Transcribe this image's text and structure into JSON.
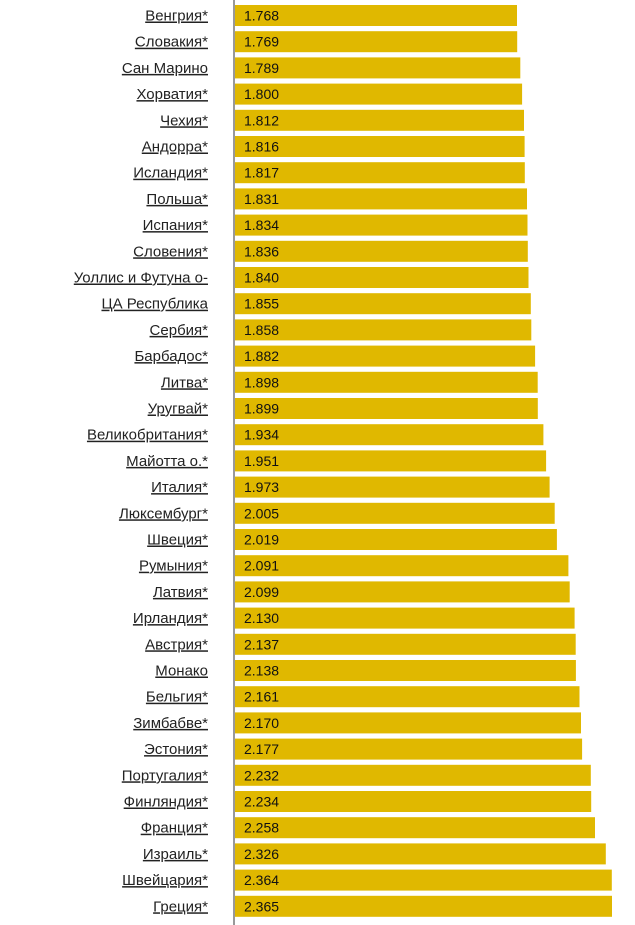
{
  "chart_data": {
    "type": "bar",
    "orientation": "horizontal",
    "title": "",
    "xlabel": "",
    "ylabel": "",
    "bar_color": "#E0B800",
    "axis_color": "#333333",
    "categories": [
      "Венгрия*",
      "Словакия*",
      "Сан Марино",
      "Хорватия*",
      "Чехия*",
      "Андорра*",
      "Исландия*",
      "Польша*",
      "Испания*",
      "Словения*",
      "Уоллис и Футуна о-",
      "ЦА Республика",
      "Сербия*",
      "Барбадос*",
      "Литва*",
      "Уругвай*",
      "Великобритания*",
      "Майотта о.*",
      "Италия*",
      "Люксембург*",
      "Швеция*",
      "Румыния*",
      "Латвия*",
      "Ирландия*",
      "Австрия*",
      "Монако",
      "Бельгия*",
      "Зимбабве*",
      "Эстония*",
      "Португалия*",
      "Финляндия*",
      "Франция*",
      "Израиль*",
      "Швейцария*",
      "Греция*"
    ],
    "values": [
      1.768,
      1.769,
      1.789,
      1.8,
      1.812,
      1.816,
      1.817,
      1.831,
      1.834,
      1.836,
      1.84,
      1.855,
      1.858,
      1.882,
      1.898,
      1.899,
      1.934,
      1.951,
      1.973,
      2.005,
      2.019,
      2.091,
      2.099,
      2.13,
      2.137,
      2.138,
      2.161,
      2.17,
      2.177,
      2.232,
      2.234,
      2.258,
      2.326,
      2.364,
      2.365
    ],
    "value_labels": [
      "1.768",
      "1.769",
      "1.789",
      "1.800",
      "1.812",
      "1.816",
      "1.817",
      "1.831",
      "1.834",
      "1.836",
      "1.840",
      "1.855",
      "1.858",
      "1.882",
      "1.898",
      "1.899",
      "1.934",
      "1.951",
      "1.973",
      "2.005",
      "2.019",
      "2.091",
      "2.099",
      "2.130",
      "2.137",
      "2.138",
      "2.161",
      "2.170",
      "2.177",
      "2.232",
      "2.234",
      "2.258",
      "2.326",
      "2.364",
      "2.365"
    ]
  }
}
